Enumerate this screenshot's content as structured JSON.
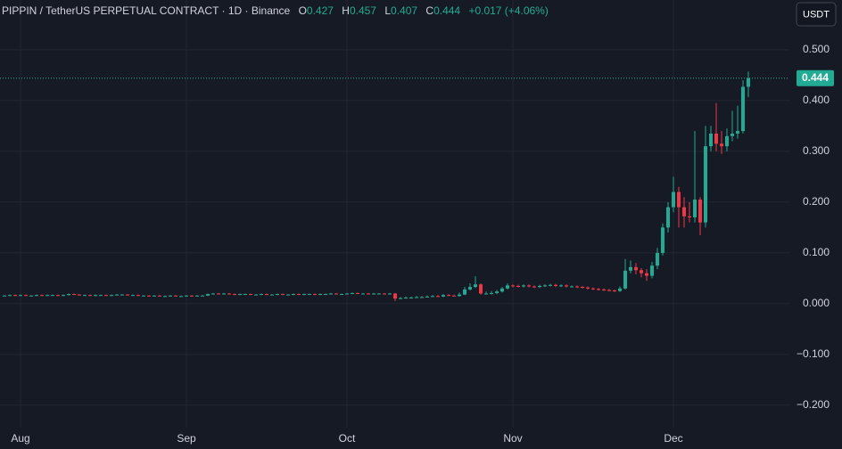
{
  "chart_data": {
    "type": "candlestick",
    "title": "PIPPIN / TetherUS PERPETUAL CONTRACT · 1D · Binance",
    "ohlc_letters": [
      "O",
      "H",
      "L",
      "C"
    ],
    "change_label": "+0.017 (+4.06%)",
    "currency": "USDT",
    "up_color": "#22ab94",
    "down_color": "#f23645",
    "grid": true,
    "last_price_line": true,
    "ylim": [
      -0.244,
      0.598
    ],
    "yticks": [
      {
        "value": 0.5,
        "label": "0.500"
      },
      {
        "value": 0.4,
        "label": "0.400"
      },
      {
        "value": 0.3,
        "label": "0.300"
      },
      {
        "value": 0.2,
        "label": "0.200"
      },
      {
        "value": 0.1,
        "label": "0.100"
      },
      {
        "value": 0,
        "label": "0.000"
      },
      {
        "value": -0.1,
        "label": "−0.100"
      },
      {
        "value": -0.2,
        "label": "−0.200"
      }
    ],
    "categories": [
      null,
      null,
      null,
      "Aug",
      null,
      null,
      null,
      null,
      null,
      null,
      null,
      null,
      null,
      null,
      null,
      null,
      null,
      null,
      null,
      null,
      null,
      null,
      null,
      null,
      null,
      null,
      null,
      null,
      null,
      null,
      null,
      null,
      null,
      null,
      "Sep",
      null,
      null,
      null,
      null,
      null,
      null,
      null,
      null,
      null,
      null,
      null,
      null,
      null,
      null,
      null,
      null,
      null,
      null,
      null,
      null,
      null,
      null,
      null,
      null,
      null,
      null,
      null,
      null,
      null,
      "Oct",
      null,
      null,
      null,
      null,
      null,
      null,
      null,
      null,
      null,
      null,
      null,
      null,
      null,
      null,
      null,
      null,
      null,
      null,
      null,
      null,
      null,
      null,
      null,
      null,
      null,
      null,
      null,
      null,
      null,
      null,
      "Nov",
      null,
      null,
      null,
      null,
      null,
      null,
      null,
      null,
      null,
      null,
      null,
      null,
      null,
      null,
      null,
      null,
      null,
      null,
      null,
      null,
      null,
      null,
      null,
      null,
      null,
      null,
      null,
      null,
      null,
      "Dec",
      null,
      null,
      null,
      null,
      null,
      null,
      null,
      null,
      null,
      null,
      null,
      null,
      null,
      null
    ],
    "open": [
      0.016,
      0.016,
      0.017,
      0.016,
      0.017,
      0.016,
      0.016,
      0.017,
      0.016,
      0.017,
      0.017,
      0.016,
      0.017,
      0.019,
      0.018,
      0.017,
      0.017,
      0.016,
      0.017,
      0.017,
      0.016,
      0.017,
      0.018,
      0.018,
      0.017,
      0.017,
      0.016,
      0.016,
      0.015,
      0.016,
      0.015,
      0.015,
      0.016,
      0.015,
      0.015,
      0.016,
      0.015,
      0.016,
      0.016,
      0.019,
      0.02,
      0.019,
      0.02,
      0.019,
      0.018,
      0.019,
      0.019,
      0.018,
      0.018,
      0.019,
      0.018,
      0.018,
      0.019,
      0.018,
      0.018,
      0.019,
      0.018,
      0.019,
      0.019,
      0.018,
      0.019,
      0.019,
      0.02,
      0.019,
      0.019,
      0.02,
      0.021,
      0.02,
      0.02,
      0.019,
      0.02,
      0.02,
      0.019,
      0.02,
      0.01,
      0.011,
      0.012,
      0.012,
      0.013,
      0.013,
      0.014,
      0.015,
      0.014,
      0.017,
      0.016,
      0.015,
      0.018,
      0.028,
      0.033,
      0.038,
      0.02,
      0.02,
      0.021,
      0.024,
      0.03,
      0.036,
      0.035,
      0.034,
      0.036,
      0.034,
      0.033,
      0.035,
      0.036,
      0.037,
      0.035,
      0.036,
      0.034,
      0.034,
      0.033,
      0.032,
      0.03,
      0.029,
      0.028,
      0.027,
      0.026,
      0.025,
      0.03,
      0.065,
      0.072,
      0.066,
      0.06,
      0.055,
      0.075,
      0.1,
      0.15,
      0.19,
      0.22,
      0.19,
      0.172,
      0.17,
      0.205,
      0.16,
      0.31,
      0.335,
      0.315,
      0.31,
      0.33,
      0.335,
      0.34,
      0.427
    ],
    "high": [
      0.017,
      0.018,
      0.018,
      0.018,
      0.018,
      0.017,
      0.018,
      0.018,
      0.018,
      0.018,
      0.018,
      0.018,
      0.02,
      0.02,
      0.019,
      0.018,
      0.018,
      0.018,
      0.018,
      0.018,
      0.018,
      0.019,
      0.019,
      0.019,
      0.018,
      0.018,
      0.017,
      0.017,
      0.017,
      0.017,
      0.016,
      0.017,
      0.017,
      0.016,
      0.017,
      0.017,
      0.017,
      0.017,
      0.02,
      0.021,
      0.021,
      0.021,
      0.021,
      0.02,
      0.02,
      0.02,
      0.02,
      0.019,
      0.02,
      0.02,
      0.019,
      0.02,
      0.02,
      0.019,
      0.02,
      0.02,
      0.02,
      0.02,
      0.02,
      0.02,
      0.02,
      0.021,
      0.021,
      0.02,
      0.021,
      0.022,
      0.022,
      0.021,
      0.021,
      0.021,
      0.021,
      0.021,
      0.021,
      0.021,
      0.013,
      0.014,
      0.014,
      0.015,
      0.015,
      0.016,
      0.017,
      0.017,
      0.019,
      0.019,
      0.018,
      0.022,
      0.033,
      0.04,
      0.054,
      0.04,
      0.024,
      0.025,
      0.027,
      0.033,
      0.04,
      0.038,
      0.037,
      0.038,
      0.038,
      0.036,
      0.037,
      0.038,
      0.039,
      0.039,
      0.038,
      0.038,
      0.036,
      0.036,
      0.035,
      0.034,
      0.032,
      0.031,
      0.03,
      0.029,
      0.028,
      0.034,
      0.088,
      0.085,
      0.08,
      0.07,
      0.068,
      0.082,
      0.11,
      0.158,
      0.2,
      0.25,
      0.23,
      0.21,
      0.2,
      0.34,
      0.21,
      0.35,
      0.35,
      0.395,
      0.34,
      0.345,
      0.38,
      0.39,
      0.44,
      0.457
    ],
    "low": [
      0.015,
      0.015,
      0.015,
      0.015,
      0.015,
      0.015,
      0.015,
      0.015,
      0.015,
      0.016,
      0.015,
      0.015,
      0.016,
      0.017,
      0.016,
      0.016,
      0.015,
      0.015,
      0.016,
      0.015,
      0.015,
      0.016,
      0.017,
      0.016,
      0.016,
      0.015,
      0.015,
      0.014,
      0.014,
      0.014,
      0.014,
      0.014,
      0.014,
      0.014,
      0.014,
      0.014,
      0.014,
      0.015,
      0.015,
      0.018,
      0.018,
      0.018,
      0.018,
      0.017,
      0.017,
      0.018,
      0.017,
      0.017,
      0.017,
      0.017,
      0.017,
      0.017,
      0.017,
      0.017,
      0.017,
      0.017,
      0.017,
      0.018,
      0.017,
      0.017,
      0.018,
      0.018,
      0.018,
      0.018,
      0.018,
      0.019,
      0.019,
      0.019,
      0.018,
      0.018,
      0.019,
      0.018,
      0.018,
      0.005,
      0.009,
      0.01,
      0.011,
      0.011,
      0.012,
      0.012,
      0.013,
      0.013,
      0.013,
      0.015,
      0.014,
      0.014,
      0.017,
      0.026,
      0.031,
      0.018,
      0.018,
      0.018,
      0.019,
      0.022,
      0.028,
      0.032,
      0.032,
      0.032,
      0.032,
      0.031,
      0.031,
      0.033,
      0.034,
      0.033,
      0.033,
      0.032,
      0.032,
      0.031,
      0.03,
      0.028,
      0.027,
      0.026,
      0.025,
      0.024,
      0.023,
      0.023,
      0.028,
      0.06,
      0.058,
      0.052,
      0.045,
      0.05,
      0.068,
      0.095,
      0.14,
      0.18,
      0.15,
      0.15,
      0.16,
      0.16,
      0.135,
      0.15,
      0.3,
      0.3,
      0.295,
      0.3,
      0.32,
      0.325,
      0.335,
      0.407
    ],
    "close": [
      0.016,
      0.017,
      0.016,
      0.017,
      0.016,
      0.016,
      0.017,
      0.016,
      0.017,
      0.017,
      0.016,
      0.017,
      0.019,
      0.018,
      0.017,
      0.017,
      0.016,
      0.017,
      0.017,
      0.016,
      0.017,
      0.018,
      0.018,
      0.017,
      0.017,
      0.016,
      0.016,
      0.015,
      0.016,
      0.015,
      0.015,
      0.016,
      0.015,
      0.015,
      0.016,
      0.015,
      0.016,
      0.016,
      0.019,
      0.02,
      0.019,
      0.02,
      0.019,
      0.018,
      0.019,
      0.019,
      0.018,
      0.018,
      0.019,
      0.018,
      0.018,
      0.019,
      0.018,
      0.018,
      0.019,
      0.018,
      0.019,
      0.019,
      0.018,
      0.019,
      0.019,
      0.02,
      0.019,
      0.019,
      0.02,
      0.021,
      0.02,
      0.02,
      0.019,
      0.02,
      0.02,
      0.019,
      0.02,
      0.01,
      0.011,
      0.012,
      0.012,
      0.013,
      0.013,
      0.014,
      0.015,
      0.014,
      0.017,
      0.016,
      0.015,
      0.018,
      0.028,
      0.033,
      0.038,
      0.02,
      0.02,
      0.021,
      0.024,
      0.03,
      0.036,
      0.035,
      0.034,
      0.036,
      0.034,
      0.033,
      0.035,
      0.036,
      0.037,
      0.035,
      0.036,
      0.034,
      0.034,
      0.033,
      0.032,
      0.03,
      0.029,
      0.028,
      0.027,
      0.026,
      0.025,
      0.03,
      0.065,
      0.072,
      0.066,
      0.06,
      0.055,
      0.075,
      0.1,
      0.15,
      0.19,
      0.22,
      0.19,
      0.172,
      0.17,
      0.205,
      0.16,
      0.31,
      0.335,
      0.315,
      0.31,
      0.33,
      0.335,
      0.34,
      0.427,
      0.444
    ]
  }
}
